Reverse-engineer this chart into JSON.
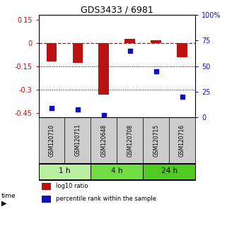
{
  "title": "GDS3433 / 6981",
  "samples": [
    "GSM120710",
    "GSM120711",
    "GSM120648",
    "GSM120708",
    "GSM120715",
    "GSM120716"
  ],
  "log10_ratio": [
    -0.12,
    -0.13,
    -0.335,
    0.025,
    0.015,
    -0.09
  ],
  "percentile_rank": [
    9,
    8,
    2,
    65,
    45,
    20
  ],
  "groups": [
    {
      "label": "1 h",
      "samples": [
        0,
        1
      ],
      "color": "#b8f0a0"
    },
    {
      "label": "4 h",
      "samples": [
        2,
        3
      ],
      "color": "#70dd40"
    },
    {
      "label": "24 h",
      "samples": [
        4,
        5
      ],
      "color": "#50cc20"
    }
  ],
  "ylim_left": [
    -0.48,
    0.18
  ],
  "ylim_right": [
    0,
    100
  ],
  "yticks_left": [
    0.15,
    0.0,
    -0.15,
    -0.3,
    -0.45
  ],
  "yticks_right": [
    100,
    75,
    50,
    25,
    0
  ],
  "bar_color": "#bb1111",
  "dot_color": "#1111bb",
  "bar_width": 0.4,
  "legend_items": [
    "log10 ratio",
    "percentile rank within the sample"
  ],
  "group_colors": [
    "#b8f0a0",
    "#70dd40",
    "#50cc20"
  ],
  "sample_box_color": "#cccccc",
  "sample_box_edge": "#333333"
}
